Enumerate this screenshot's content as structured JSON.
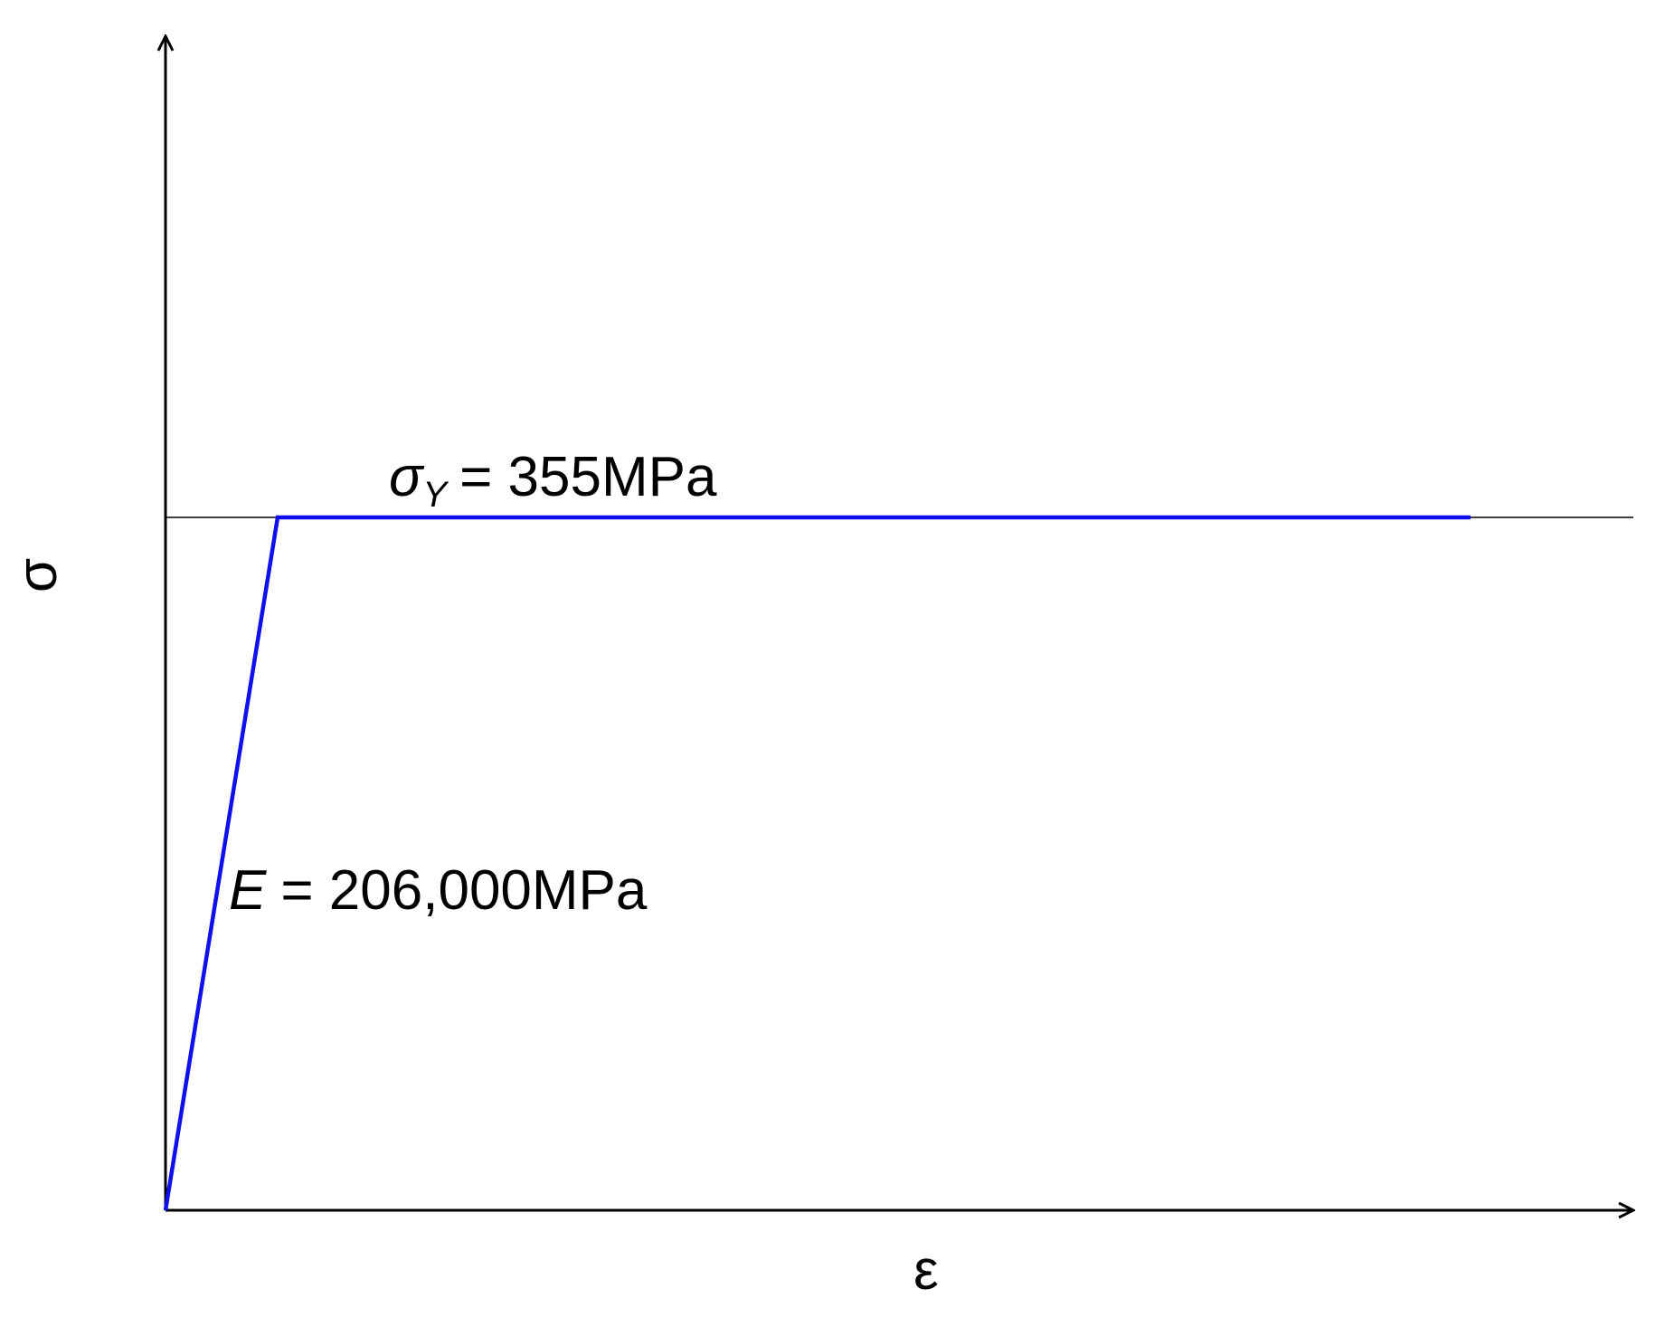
{
  "axes": {
    "y_label": "σ",
    "x_label": "ε"
  },
  "annotations": {
    "yield": {
      "symbol": "σ",
      "subscript": "Y",
      "text": "= 355MPa"
    },
    "modulus": {
      "symbol": "E",
      "text": "= 206,000MPa"
    }
  }
}
